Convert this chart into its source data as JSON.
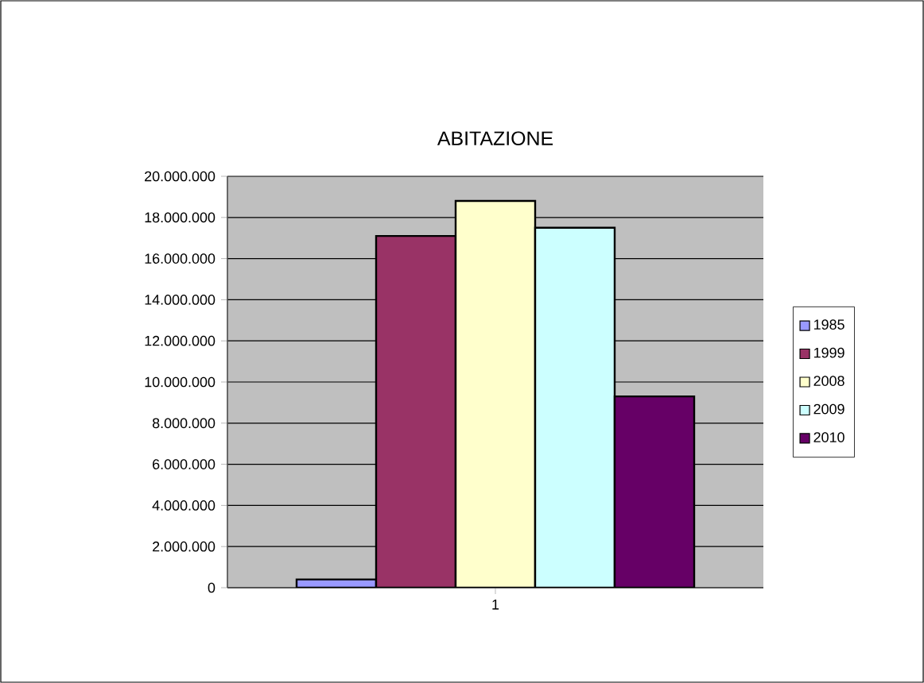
{
  "chart_data": {
    "type": "bar",
    "title": "ABITAZIONE",
    "categories": [
      "1"
    ],
    "series": [
      {
        "name": "1985",
        "color": "#9999ff",
        "values": [
          400000
        ]
      },
      {
        "name": "1999",
        "color": "#993366",
        "values": [
          17100000
        ]
      },
      {
        "name": "2008",
        "color": "#ffffcc",
        "values": [
          18800000
        ]
      },
      {
        "name": "2009",
        "color": "#ccffff",
        "values": [
          17500000
        ]
      },
      {
        "name": "2010",
        "color": "#660066",
        "values": [
          9300000
        ]
      }
    ],
    "ylim": [
      0,
      20000000
    ],
    "yticks": [
      0,
      {
        "value": 2000000,
        "label": "2.000.000"
      },
      {
        "value": 4000000,
        "label": "4.000.000"
      },
      {
        "value": 6000000,
        "label": "6.000.000"
      },
      {
        "value": 8000000,
        "label": "8.000.000"
      },
      {
        "value": 10000000,
        "label": "10.000.000"
      },
      {
        "value": 12000000,
        "label": "12.000.000"
      },
      {
        "value": 14000000,
        "label": "14.000.000"
      },
      {
        "value": 16000000,
        "label": "16.000.000"
      },
      {
        "value": 18000000,
        "label": "18.000.000"
      },
      {
        "value": 20000000,
        "label": "20.000.000"
      }
    ],
    "grid": "y",
    "legend": "right"
  }
}
